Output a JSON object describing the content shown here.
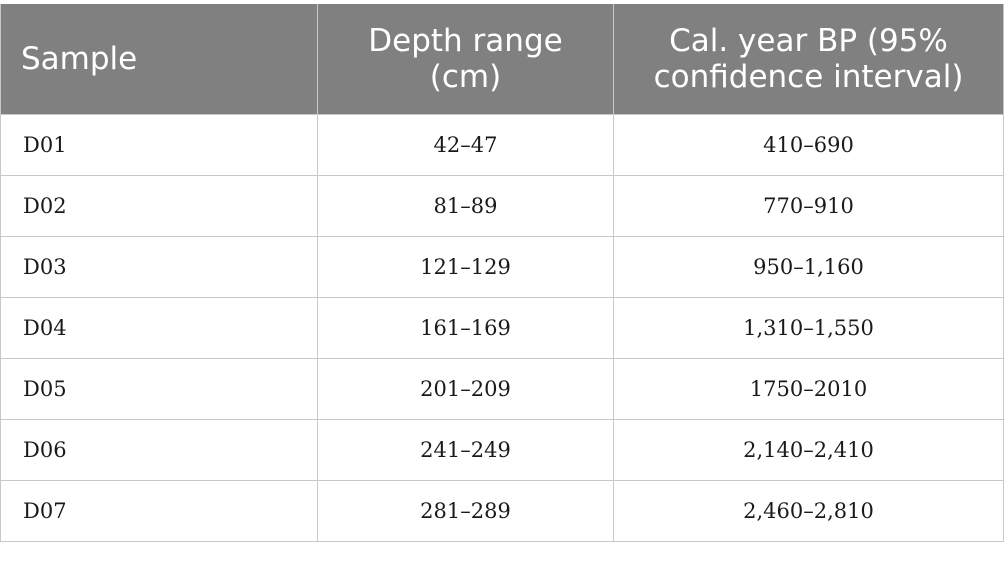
{
  "table": {
    "headers": [
      "Sample",
      "Depth range (cm)",
      "Cal. year BP (95% confidence interval)"
    ],
    "rows": [
      {
        "sample": "D01",
        "depth": "42–47",
        "cal": "410–690"
      },
      {
        "sample": "D02",
        "depth": "81–89",
        "cal": "770–910"
      },
      {
        "sample": "D03",
        "depth": "121–129",
        "cal": "950–1,160"
      },
      {
        "sample": "D04",
        "depth": "161–169",
        "cal": "1,310–1,550"
      },
      {
        "sample": "D05",
        "depth": "201–209",
        "cal": "1750–2010"
      },
      {
        "sample": "D06",
        "depth": "241–249",
        "cal": "2,140–2,410"
      },
      {
        "sample": "D07",
        "depth": "281–289",
        "cal": "2,460–2,810"
      }
    ]
  },
  "colors": {
    "header_bg": "#808080",
    "header_text": "#ffffff",
    "border": "#c8c8c8"
  }
}
